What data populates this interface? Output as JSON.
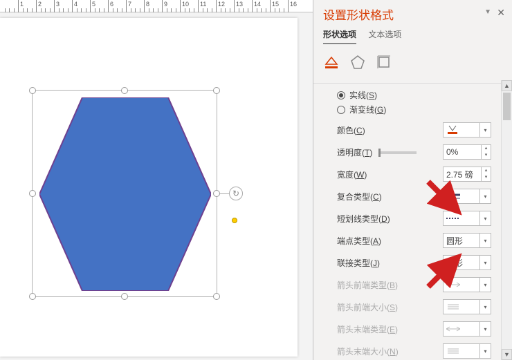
{
  "ruler": {
    "majors": [
      1,
      2,
      3,
      4,
      5,
      6,
      7,
      8,
      9,
      10,
      11,
      12,
      13,
      14,
      15,
      16
    ]
  },
  "shape": {
    "fill": "#4472c4",
    "stroke": "#6e408f",
    "stroke_width": 2
  },
  "panel": {
    "title": "设置形状格式",
    "tabs": {
      "shape_options": "形状选项",
      "text_options": "文本选项",
      "active": 0
    },
    "radios": {
      "solid": {
        "label": "实线",
        "accel": "S",
        "checked": true
      },
      "gradient": {
        "label": "渐变线",
        "accel": "G",
        "checked": false
      }
    },
    "props": {
      "color": {
        "label": "颜色",
        "accel": "C",
        "swatch": "#d83b01"
      },
      "transparency": {
        "label": "透明度",
        "accel": "T",
        "value": "0%"
      },
      "width": {
        "label": "宽度",
        "accel": "W",
        "value": "2.75 磅"
      },
      "compound": {
        "label": "复合类型",
        "accel": "C"
      },
      "dash": {
        "label": "短划线类型",
        "accel": "D"
      },
      "cap": {
        "label": "端点类型",
        "accel": "A",
        "value": "圆形"
      },
      "join": {
        "label": "联接类型",
        "accel": "J",
        "value": "圆形"
      },
      "arrow_begin_type": {
        "label": "箭头前端类型",
        "accel": "B",
        "disabled": true
      },
      "arrow_begin_size": {
        "label": "箭头前端大小",
        "accel": "S",
        "disabled": true
      },
      "arrow_end_type": {
        "label": "箭头末端类型",
        "accel": "E",
        "disabled": true
      },
      "arrow_end_size": {
        "label": "箭头末端大小",
        "accel": "N",
        "disabled": true
      }
    }
  },
  "annotations": {
    "arrow_color": "#d02020"
  }
}
